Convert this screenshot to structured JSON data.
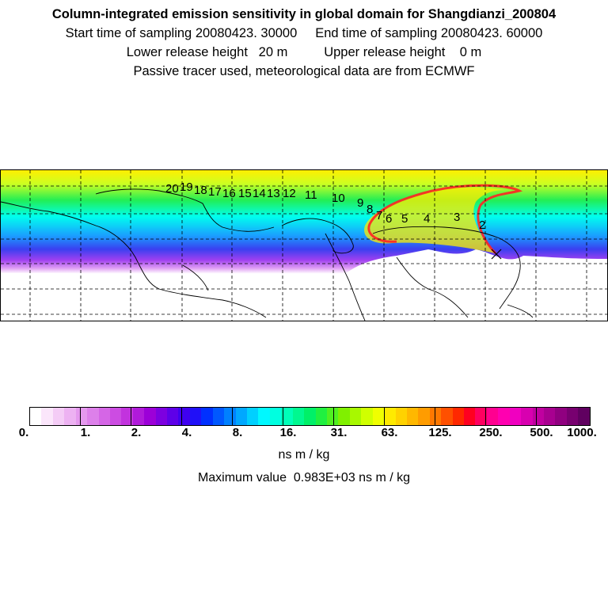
{
  "header": {
    "title": "Column-integrated emission sensitivity in global domain for Shangdianzi_200804",
    "line2": "Start time of sampling 20080423. 30000     End time of sampling 20080423. 60000",
    "line3": "Lower release height   20 m          Upper release height    0 m",
    "line4": "Passive tracer used, meteorological data are from ECMWF"
  },
  "map": {
    "track_labels": [
      "20",
      "19",
      "18",
      "17",
      "16",
      "15",
      "14",
      "13",
      "12",
      "11",
      "10",
      "9",
      "8",
      "7",
      "6",
      "5",
      "4",
      "3",
      "2"
    ],
    "colors": {
      "ocean_far": "#cc44ee",
      "ocean_mid": "#2266ff",
      "cyan": "#00ffee",
      "green": "#22ee55",
      "yellow_green": "#ccff22",
      "yellow": "#ffee00",
      "red": "#ff2222",
      "magenta": "#ff2299"
    }
  },
  "colorbar": {
    "colors": [
      "#ffffff",
      "#fbe6fb",
      "#f4ccf6",
      "#edb2f2",
      "#e599ee",
      "#dd80ea",
      "#d566e6",
      "#cc4ce2",
      "#c233de",
      "#b01ada",
      "#9c00d8",
      "#7d00e0",
      "#5e00e8",
      "#3f00f0",
      "#2010f8",
      "#0030ff",
      "#0058ff",
      "#0080ff",
      "#00a8ff",
      "#00d0ff",
      "#00f8ff",
      "#00ffe0",
      "#00ffb8",
      "#00f890",
      "#00f068",
      "#20f040",
      "#50f020",
      "#80f000",
      "#a8f800",
      "#d0ff00",
      "#f0ff00",
      "#ffea00",
      "#ffd200",
      "#ffb800",
      "#ff9c00",
      "#ff7800",
      "#ff5000",
      "#ff2800",
      "#ff0020",
      "#ff0060",
      "#ff0090",
      "#ff00b0",
      "#f000c0",
      "#d800b0",
      "#c000a0",
      "#a80090",
      "#900080",
      "#780070",
      "#600060"
    ],
    "tick_labels": [
      "0.",
      "1.",
      "2.",
      "4.",
      "8.",
      "16.",
      "31.",
      "63.",
      "125.",
      "250.",
      "500.",
      "1000."
    ],
    "unit": "ns m / kg",
    "max_text": "Maximum value  0.983E+03 ns m / kg"
  }
}
